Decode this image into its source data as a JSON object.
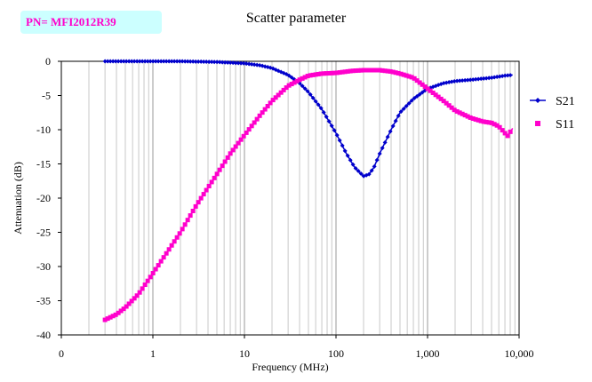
{
  "part_number": "PN= MFI2012R39",
  "chart_data": {
    "type": "line",
    "title": "Scatter parameter",
    "xlabel": "Frequency (MHz)",
    "ylabel": "Attenuation (dB)",
    "x_scale": "log",
    "x_ticks": [
      {
        "value": 0.1,
        "label": "0"
      },
      {
        "value": 1,
        "label": "1"
      },
      {
        "value": 10,
        "label": "10"
      },
      {
        "value": 100,
        "label": "100"
      },
      {
        "value": 1000,
        "label": "1,000"
      },
      {
        "value": 10000,
        "label": "10,000"
      }
    ],
    "y_ticks": [
      0,
      -5,
      -10,
      -15,
      -20,
      -25,
      -30,
      -35,
      -40
    ],
    "xlim": [
      0.1,
      10000
    ],
    "ylim": [
      -40,
      0
    ],
    "grid": {
      "vertical": true,
      "horizontal": false
    },
    "legend_position": "right",
    "series": [
      {
        "name": "S21",
        "color": "#0000cc",
        "marker": "diamond",
        "x": [
          0.3,
          0.5,
          1,
          2,
          5,
          10,
          15,
          20,
          30,
          40,
          50,
          70,
          100,
          130,
          160,
          200,
          230,
          260,
          300,
          400,
          500,
          700,
          1000,
          1500,
          2000,
          3000,
          5000,
          7000,
          8500
        ],
        "y": [
          0,
          0,
          0,
          0,
          -0.1,
          -0.3,
          -0.6,
          -1,
          -2,
          -3.2,
          -4.5,
          -7,
          -10.5,
          -13.5,
          -15.5,
          -16.8,
          -16.5,
          -15.5,
          -13.5,
          -10,
          -7.5,
          -5.5,
          -4,
          -3.2,
          -2.9,
          -2.7,
          -2.4,
          -2.1,
          -2
        ]
      },
      {
        "name": "S11",
        "color": "#ff00cc",
        "marker": "square",
        "x": [
          0.3,
          0.4,
          0.5,
          0.7,
          1,
          1.5,
          2,
          3,
          5,
          7,
          10,
          15,
          20,
          30,
          40,
          50,
          70,
          100,
          150,
          200,
          300,
          400,
          500,
          700,
          1000,
          1500,
          2000,
          3000,
          4000,
          5000,
          6000,
          7000,
          7500,
          8500
        ],
        "y": [
          -37.8,
          -37,
          -36,
          -34,
          -31,
          -27.5,
          -25,
          -21,
          -16.5,
          -13.5,
          -10.8,
          -7.8,
          -5.8,
          -3.6,
          -2.7,
          -2.1,
          -1.8,
          -1.7,
          -1.4,
          -1.3,
          -1.3,
          -1.5,
          -1.8,
          -2.4,
          -4,
          -5.8,
          -7.2,
          -8.3,
          -8.8,
          -9,
          -9.5,
          -10.5,
          -10.9,
          -9.8
        ]
      }
    ]
  }
}
